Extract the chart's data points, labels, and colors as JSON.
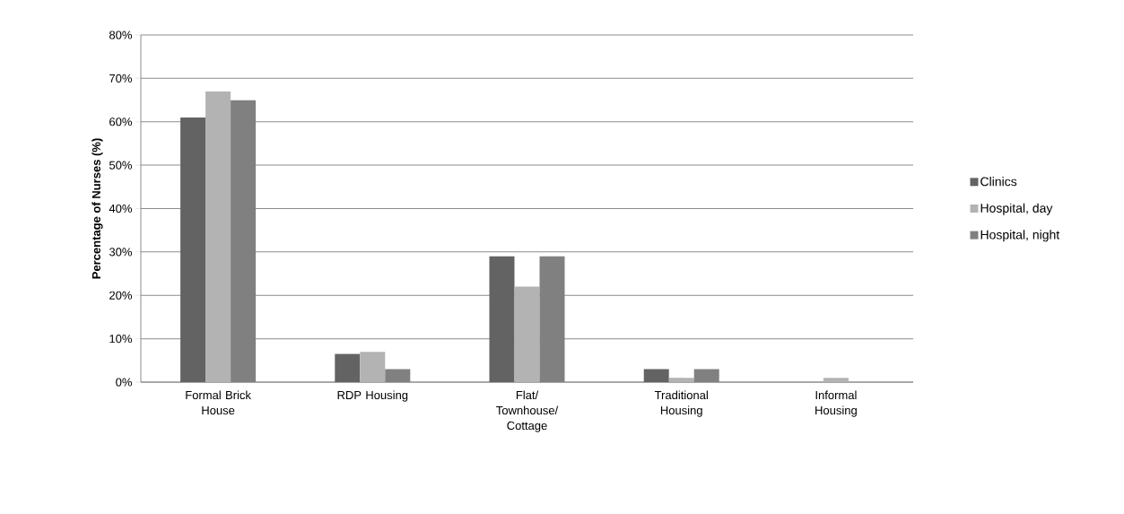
{
  "chart_data": {
    "type": "bar",
    "ylabel": "Percentage of Nurses (%)",
    "categories": [
      "Formal Brick House",
      "RDP Housing",
      "Flat/ Townhouse/ Cottage",
      "Traditional Housing",
      "Informal Housing"
    ],
    "series": [
      {
        "name": "Clinics",
        "color": "#636363",
        "values": [
          61,
          6.5,
          29,
          3,
          0
        ]
      },
      {
        "name": "Hospital, day",
        "color": "#b3b3b3",
        "values": [
          67,
          7,
          22,
          1,
          1
        ]
      },
      {
        "name": "Hospital, night",
        "color": "#808080",
        "values": [
          65,
          3,
          29,
          3,
          0
        ]
      }
    ],
    "ylim": [
      0,
      80
    ],
    "yticks": [
      {
        "value": 0,
        "label": "0%"
      },
      {
        "value": 10,
        "label": "10%"
      },
      {
        "value": 20,
        "label": "20%"
      },
      {
        "value": 30,
        "label": "30%"
      },
      {
        "value": 40,
        "label": "40%"
      },
      {
        "value": 50,
        "label": "50%"
      },
      {
        "value": 60,
        "label": "60%"
      },
      {
        "value": 70,
        "label": "70%"
      },
      {
        "value": 80,
        "label": "80%"
      }
    ],
    "grid": "y",
    "legend": "right"
  }
}
